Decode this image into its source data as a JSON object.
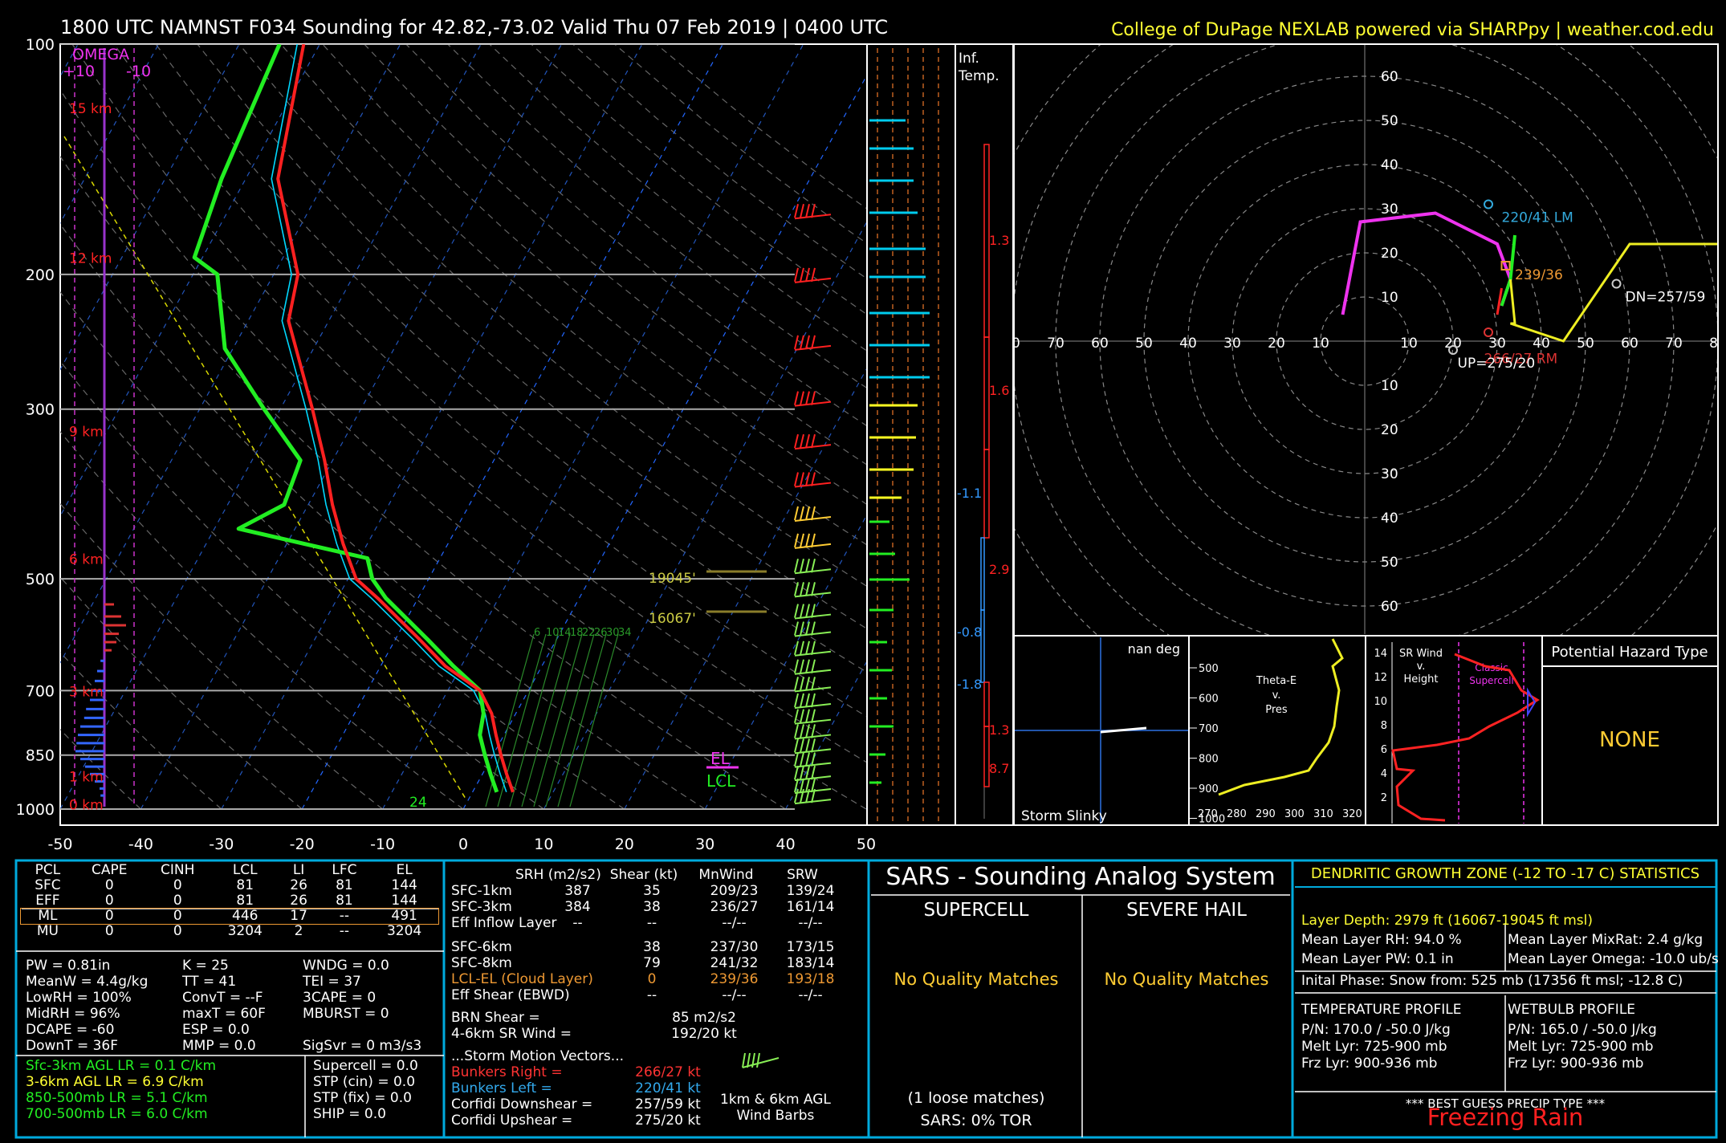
{
  "header": {
    "title": "1800 UTC NAMNST F034 Sounding for 42.82,-73.02 Valid  Thu 07 Feb 2019 | 0400 UTC",
    "credit": "College of DuPage NEXLAB powered via SHARPpy | weather.cod.edu"
  },
  "skewt": {
    "omega_label": "OMEGA",
    "omega_scale_left": "+10",
    "omega_scale_right": "-10",
    "pressure_ticks": [
      "100",
      "200",
      "300",
      "500",
      "700",
      "850",
      "1000"
    ],
    "height_labels": [
      "15 km",
      "12 km",
      "9 km",
      "6 km",
      "3 km",
      "1 km",
      "0 km"
    ],
    "temp_ticks": [
      "-50",
      "-40",
      "-30",
      "-20",
      "-10",
      "0",
      "10",
      "20",
      "30",
      "40",
      "50"
    ],
    "mixing_ratio_labels": [
      "6",
      "10",
      "14",
      "18",
      "22",
      "26",
      "30",
      "34"
    ],
    "dgz_top_label": "19045'",
    "dgz_bottom_label": "16067'",
    "el_label": "EL",
    "lcl_label": "LCL",
    "sfc_value": "24",
    "colors": {
      "temp": "#ff2020",
      "dewpoint": "#22ee22",
      "virtual": "#00d8ff",
      "parcel": "#d8d800"
    }
  },
  "chart_data": [
    {
      "type": "line",
      "title": "",
      "xlabel": "",
      "ylabel": "",
      "xlim": [
        -50,
        50
      ],
      "ylim": [
        1000,
        100
      ],
      "y_scale": "log-pressure",
      "series": [
        {
          "values_pres": [
            100,
            150,
            200,
            230,
            300,
            350,
            400,
            450,
            500,
            530,
            600,
            650,
            700,
            750,
            800,
            850,
            900,
            950
          ],
          "values_temp": [
            -72,
            -66,
            -57,
            -55,
            -46,
            -41,
            -37,
            -33,
            -29,
            -25,
            -17,
            -12,
            -6,
            -3,
            -1,
            1,
            3,
            5
          ]
        },
        {
          "values_pres": [
            100,
            150,
            190,
            200,
            250,
            300,
            350,
            400,
            430,
            470,
            500,
            530,
            600,
            650,
            700,
            750,
            800,
            850,
            900,
            950
          ],
          "values_temp": [
            -75,
            -73,
            -71,
            -67,
            -61,
            -52,
            -44,
            -43,
            -47,
            -29,
            -27,
            -24,
            -16,
            -11,
            -6,
            -4,
            -3,
            -1,
            1,
            3
          ]
        }
      ]
    },
    {
      "type": "scatter",
      "title": "",
      "xlim": [
        -80,
        80
      ],
      "ylim": [
        -60,
        60
      ],
      "series": [
        {
          "x": [
            -5,
            -1,
            16,
            30,
            33,
            31
          ],
          "y": [
            6,
            27,
            29,
            22,
            14,
            8
          ]
        },
        {
          "x": [
            33,
            45,
            60,
            80
          ],
          "y": [
            4,
            0,
            22,
            22
          ]
        }
      ]
    }
  ],
  "inferred_temp": {
    "title": "Inf. Temp.",
    "labels": [
      "1.3",
      "1.6",
      "-1.1",
      "2.9",
      "-0.8",
      "-1.8",
      "1.3",
      "8.7"
    ]
  },
  "hodograph": {
    "labels": {
      "lm": "220/41 LM",
      "mean": "239/36",
      "rm": "266/27 RM",
      "up": "UP=275/20",
      "dn": "DN=257/59",
      "x40": "40"
    },
    "x_ticks": [
      "80",
      "70",
      "60",
      "50",
      "40",
      "30",
      "20",
      "10",
      "10",
      "20",
      "30",
      "40",
      "50",
      "60",
      "70",
      "80"
    ],
    "y_ticks_up": [
      "60",
      "50",
      "40",
      "30",
      "20",
      "10"
    ],
    "y_ticks_down": [
      "10",
      "20",
      "30",
      "40",
      "50",
      "60"
    ]
  },
  "slinky": {
    "title": "nan deg",
    "label": "Storm Slinky"
  },
  "theta_panel": {
    "title": [
      "Theta-E",
      "v.",
      "Pres"
    ],
    "y_ticks": [
      "500",
      "600",
      "700",
      "800",
      "900",
      "1000"
    ],
    "x_ticks": [
      "270",
      "280",
      "290",
      "300",
      "310",
      "320"
    ]
  },
  "srwind_panel": {
    "title": [
      "SR Wind",
      "v.",
      "Height"
    ],
    "extra": [
      "Classic",
      "Supercell"
    ],
    "y_ticks": [
      "14",
      "12",
      "10",
      "8",
      "6",
      "4",
      "2"
    ]
  },
  "hazard": {
    "title": "Potential Hazard Type",
    "value": "NONE"
  },
  "parcel_table": {
    "headers": [
      "PCL",
      "CAPE",
      "CINH",
      "LCL",
      "LI",
      "LFC",
      "EL"
    ],
    "rows": [
      [
        "SFC",
        "0",
        "0",
        "81",
        "26",
        "81",
        "144"
      ],
      [
        "EFF",
        "0",
        "0",
        "81",
        "26",
        "81",
        "144"
      ],
      [
        "ML",
        "0",
        "0",
        "446",
        "17",
        "--",
        "491"
      ],
      [
        "MU",
        "0",
        "0",
        "3204",
        "2",
        "--",
        "3204"
      ]
    ]
  },
  "indices": [
    [
      "PW = 0.81in",
      "K = 25",
      "WNDG = 0.0"
    ],
    [
      "MeanW = 4.4g/kg",
      "TT = 41",
      "TEI = 37"
    ],
    [
      "LowRH = 100%",
      "ConvT = --F",
      "3CAPE = 0"
    ],
    [
      "MidRH = 96%",
      "maxT = 60F",
      "MBURST = 0"
    ],
    [
      "DCAPE = -60",
      "ESP = 0.0",
      ""
    ],
    [
      "DownT = 36F",
      "MMP = 0.0",
      "SigSvr = 0 m3/s3"
    ]
  ],
  "lapse_rates": [
    "Sfc-3km AGL LR = 0.1 C/km",
    "3-6km AGL LR = 6.9 C/km",
    "850-500mb LR = 5.1 C/km",
    "700-500mb LR = 6.0 C/km"
  ],
  "composite": [
    "Supercell = 0.0",
    "STP (cin) = 0.0",
    "STP (fix) = 0.0",
    "SHIP = 0.0"
  ],
  "kinematics": {
    "headers": [
      "SRH (m2/s2)",
      "Shear (kt)",
      "MnWind",
      "SRW"
    ],
    "rows": [
      [
        "SFC-1km",
        "387",
        "35",
        "209/23",
        "139/24"
      ],
      [
        "SFC-3km",
        "384",
        "38",
        "236/27",
        "161/14"
      ],
      [
        "Eff Inflow Layer",
        "--",
        "--",
        "--/--",
        "--/--"
      ],
      [
        "SFC-6km",
        "",
        "38",
        "237/30",
        "173/15"
      ],
      [
        "SFC-8km",
        "",
        "79",
        "241/32",
        "183/14"
      ],
      [
        "LCL-EL (Cloud Layer)",
        "",
        "0",
        "239/36",
        "193/18"
      ],
      [
        "Eff Shear (EBWD)",
        "",
        "--",
        "--/--",
        "--/--"
      ]
    ],
    "brn": [
      "BRN Shear =",
      "85 m2/s2"
    ],
    "sr46": [
      "4-6km SR Wind =",
      "192/20 kt"
    ],
    "vectors_title": "...Storm Motion Vectors...",
    "vectors": [
      [
        "Bunkers Right =",
        "266/27 kt"
      ],
      [
        "Bunkers Left =",
        "220/41 kt"
      ],
      [
        "Corfidi Downshear =",
        "257/59 kt"
      ],
      [
        "Corfidi Upshear =",
        "275/20 kt"
      ]
    ],
    "barbs_label": [
      "1km & 6km AGL",
      "Wind Barbs"
    ]
  },
  "sars": {
    "title": "SARS - Sounding Analog System",
    "col1": "SUPERCELL",
    "col2": "SEVERE HAIL",
    "msg1": "No Quality Matches",
    "msg2": "No Quality Matches",
    "loose": "(1 loose matches)",
    "tor": "SARS: 0% TOR"
  },
  "dgz": {
    "title": "DENDRITIC GROWTH ZONE (-12 TO -17 C) STATISTICS",
    "depth": "Layer Depth: 2979 ft (16067-19045 ft msl)",
    "rh": "Mean Layer RH: 94.0 %",
    "mixrat": "Mean Layer MixRat: 2.4 g/kg",
    "pw": "Mean Layer PW: 0.1 in",
    "omega": "Mean Layer Omega: -10.0 ub/s",
    "phase": "Inital Phase: Snow from: 525 mb (17356 ft msl; -12.8 C)",
    "temp_title": "TEMPERATURE PROFILE",
    "temp_lines": [
      "P/N: 170.0 / -50.0 J/kg",
      "Melt Lyr: 725-900 mb",
      "Frz Lyr: 900-936 mb"
    ],
    "wb_title": "WETBULB PROFILE",
    "wb_lines": [
      "P/N: 165.0 / -50.0 J/kg",
      "Melt Lyr: 725-900 mb",
      "Frz Lyr: 900-936 mb"
    ],
    "precip_title": "*** BEST GUESS PRECIP TYPE ***",
    "precip": "Freezing Rain"
  }
}
